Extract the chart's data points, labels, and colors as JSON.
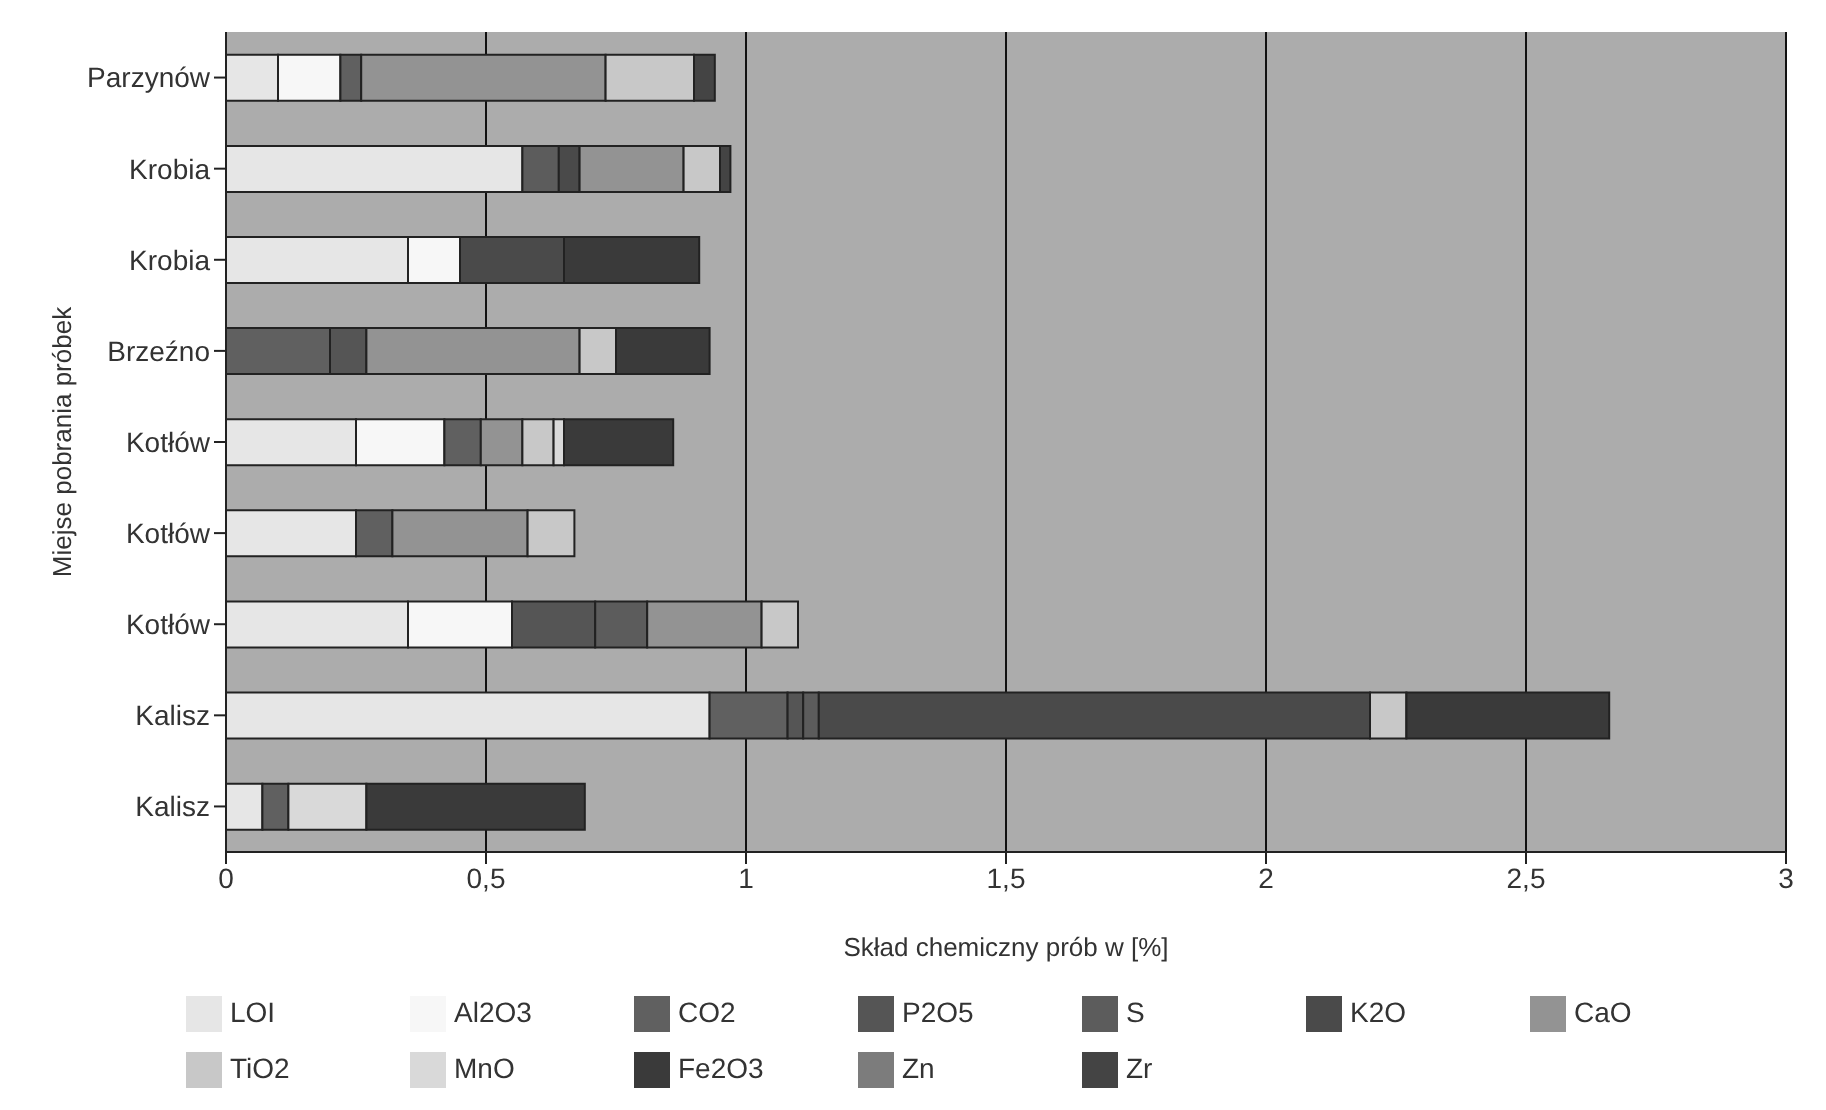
{
  "chart_data": {
    "type": "bar",
    "orientation": "horizontal",
    "stacked": true,
    "xlabel": "Skład chemiczny prób w [%]",
    "ylabel": "Miejse pobrania próbek",
    "categories": [
      "Parzynów",
      "Krobia",
      "Krobia",
      "Brzeźno",
      "Kotłów",
      "Kotłów",
      "Kotłów",
      "Kalisz",
      "Kalisz"
    ],
    "series": [
      {
        "name": "LOI",
        "color": "#e6e6e6",
        "values": [
          0.1,
          0.57,
          0.35,
          0,
          0.25,
          0.25,
          0.35,
          0.93,
          0.07
        ]
      },
      {
        "name": "Al2O3",
        "color": "#f7f7f7",
        "values": [
          0.12,
          0,
          0.1,
          0,
          0.17,
          0,
          0.2,
          0,
          0
        ]
      },
      {
        "name": "CO2",
        "color": "#606060",
        "values": [
          0.04,
          0,
          0,
          0.2,
          0.07,
          0.07,
          0,
          0.15,
          0.05
        ]
      },
      {
        "name": "P2O5",
        "color": "#555555",
        "values": [
          0,
          0,
          0,
          0.07,
          0,
          0,
          0.16,
          0.03,
          0
        ]
      },
      {
        "name": "S",
        "color": "#5c5c5c",
        "values": [
          0,
          0.07,
          0,
          0,
          0,
          0,
          0.1,
          0.03,
          0
        ]
      },
      {
        "name": "K2O",
        "color": "#4a4a4a",
        "values": [
          0,
          0.04,
          0.2,
          0,
          0,
          0,
          0,
          1.06,
          0
        ]
      },
      {
        "name": "CaO",
        "color": "#939393",
        "values": [
          0.47,
          0.2,
          0,
          0.41,
          0.08,
          0.26,
          0.22,
          0,
          0
        ]
      },
      {
        "name": "TiO2",
        "color": "#c8c8c8",
        "values": [
          0.17,
          0.07,
          0,
          0.07,
          0.06,
          0.09,
          0.07,
          0.07,
          0
        ]
      },
      {
        "name": "MnO",
        "color": "#d9d9d9",
        "values": [
          0,
          0,
          0,
          0,
          0.02,
          0,
          0,
          0,
          0.15
        ]
      },
      {
        "name": "Fe2O3",
        "color": "#3a3a3a",
        "values": [
          0,
          0,
          0.26,
          0.18,
          0.21,
          0,
          0,
          0.39,
          0.42
        ]
      },
      {
        "name": "Zn",
        "color": "#7c7c7c",
        "values": [
          0,
          0,
          0,
          0,
          0,
          0,
          0,
          0,
          0
        ]
      },
      {
        "name": "Zr",
        "color": "#444444",
        "values": [
          0.04,
          0.02,
          0,
          0,
          0,
          0,
          0,
          0,
          0
        ]
      }
    ],
    "xlim": [
      0,
      3
    ],
    "xticks": [
      0,
      {
        "value": 0.5,
        "label": "0,5"
      },
      1,
      {
        "value": 1.5,
        "label": "1,5"
      },
      2,
      {
        "value": 2.5,
        "label": "2,5"
      },
      3
    ],
    "grid": "x",
    "legend": "bottom"
  }
}
